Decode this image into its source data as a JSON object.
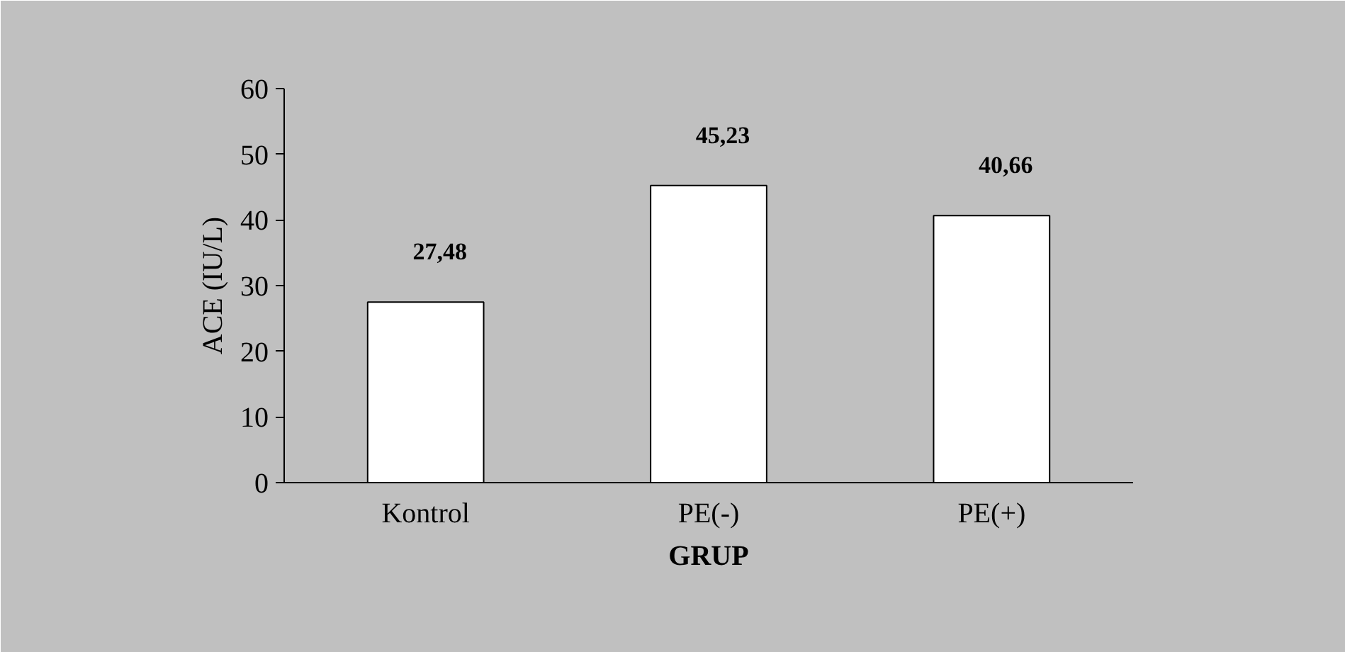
{
  "chart_data": {
    "type": "bar",
    "xlabel": "GRUP",
    "ylabel": "ACE (IU/L)",
    "categories": [
      "Kontrol",
      "PE(-)",
      "PE(+)"
    ],
    "values": [
      27.48,
      45.23,
      40.66
    ],
    "value_labels": [
      "27,48",
      "45,23",
      "40,66"
    ],
    "colors": [
      "#ffffff",
      "#ffffff",
      "#ffffff"
    ],
    "ylim": [
      0,
      60
    ],
    "yticks": [
      0,
      10,
      20,
      30,
      40,
      50,
      60
    ],
    "grid": false
  }
}
